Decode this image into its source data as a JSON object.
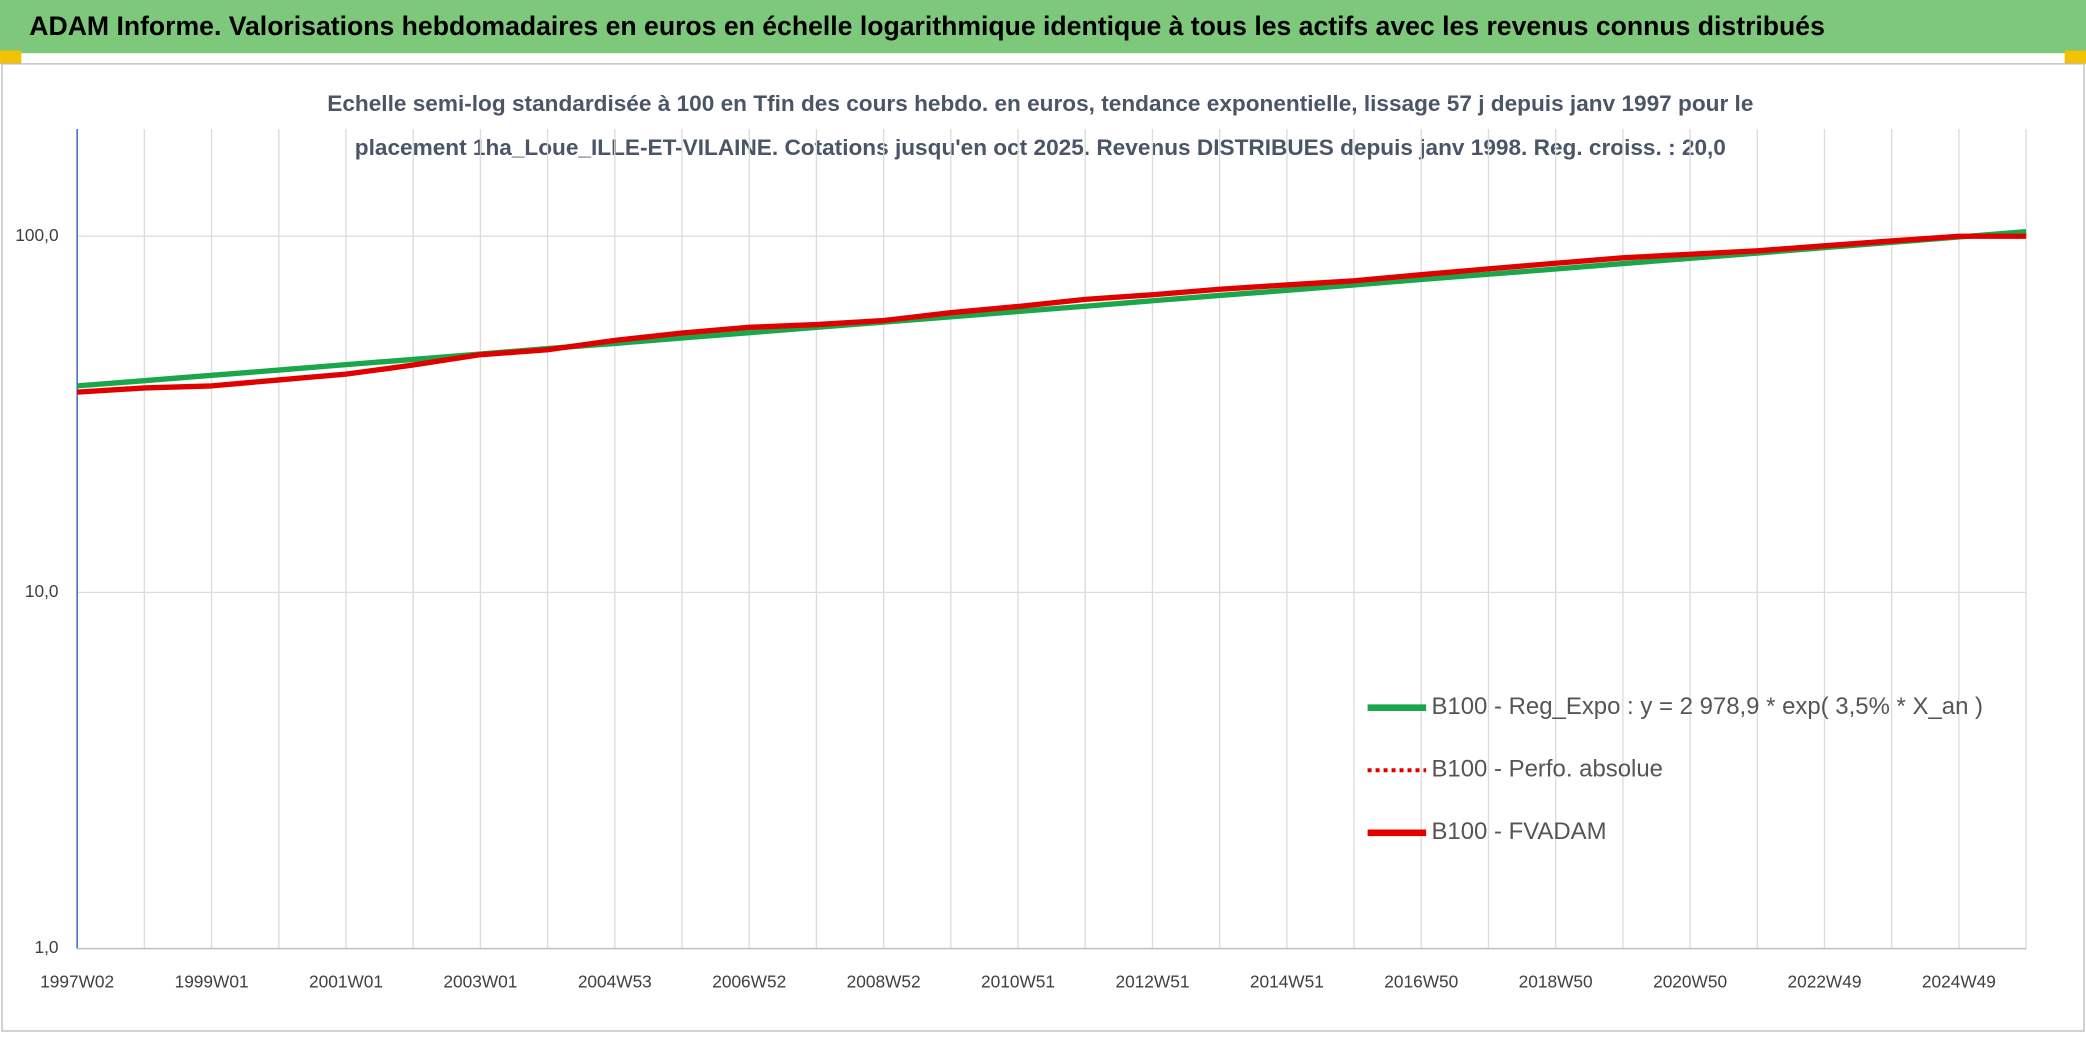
{
  "chart_data": {
    "type": "line",
    "title": "ADAM Informe. Valorisations hebdomadaires en euros en échelle logarithmique identique à tous les actifs avec les revenus connus distribués",
    "subtitle": [
      "Echelle semi-log standardisée à 100 en Tfin des cours hebdo. en euros, tendance exponentielle, lissage 57 j depuis janv 1997 pour le",
      "placement 1ha_Loue_ILLE-ET-VILAINE. Cotations jusqu'en oct 2025. Revenus DISTRIBUES depuis janv 1998. Reg. croiss. : 20,0"
    ],
    "categories": [
      "1997W02",
      null,
      "1999W01",
      null,
      "2001W01",
      null,
      "2003W01",
      null,
      "2004W53",
      null,
      "2006W52",
      null,
      "2008W52",
      null,
      "2010W51",
      null,
      "2012W51",
      null,
      "2014W51",
      null,
      "2016W50",
      null,
      "2018W50",
      null,
      "2020W50",
      null,
      "2022W49",
      null,
      "2024W49",
      null
    ],
    "series": [
      {
        "name": "B100 - Reg_Expo : y = 2 978,9 * exp( 3,5% *  X_an )",
        "color": "#1aa64a",
        "style": "solid",
        "values": [
          38.0,
          39.3,
          40.7,
          42.1,
          43.6,
          45.1,
          46.7,
          48.4,
          50.0,
          51.8,
          53.6,
          55.5,
          57.4,
          59.4,
          61.5,
          63.6,
          65.9,
          68.2,
          70.5,
          73.0,
          75.6,
          78.2,
          80.9,
          83.8,
          86.7,
          89.7,
          92.9,
          96.1,
          99.5,
          103.0
        ]
      },
      {
        "name": "B100 - Perfo. absolue",
        "color": "#e00000",
        "style": "dotted",
        "values": [
          36.5,
          37.5,
          38,
          39.5,
          41,
          43.5,
          46.5,
          48,
          51,
          53.5,
          55.5,
          56.5,
          58,
          61,
          63.5,
          66.5,
          68.5,
          71,
          73,
          75,
          78,
          81,
          84,
          87,
          89,
          91,
          94,
          97,
          100,
          100
        ]
      },
      {
        "name": "B100 - FVADAM",
        "color": "#e00000",
        "style": "solid",
        "values": [
          36.5,
          37.5,
          38,
          39.5,
          41,
          43.5,
          46.5,
          48,
          51,
          53.5,
          55.5,
          56.5,
          58,
          61,
          63.5,
          66.5,
          68.5,
          71,
          73,
          75,
          78,
          81,
          84,
          87,
          89,
          91,
          94,
          97,
          100,
          100
        ]
      }
    ],
    "ylim": [
      1,
      200
    ],
    "log_y": true,
    "yticks": [
      {
        "value": 1,
        "label": "1,0"
      },
      {
        "value": 10,
        "label": "10,0"
      },
      {
        "value": 100,
        "label": "100,0"
      }
    ],
    "grid": true,
    "legend": "right"
  }
}
